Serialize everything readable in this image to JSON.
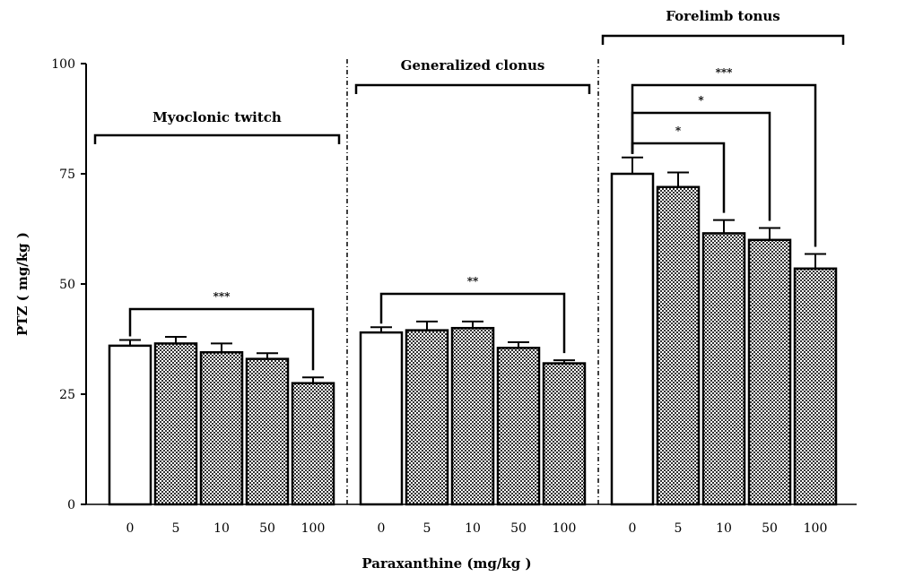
{
  "chart_data": {
    "type": "bar",
    "xlabel": "Paraxanthine (mg/kg )",
    "ylabel": "PTZ ( mg/kg )",
    "ylim": [
      0,
      100
    ],
    "yticks": [
      0,
      25,
      50,
      75,
      100
    ],
    "grid": false,
    "legend": "none",
    "colors": {
      "control": "#ffffff",
      "treated": "#9a9a9a",
      "stroke": "#000000"
    },
    "groups": [
      {
        "name": "Myoclonic twitch",
        "categories": [
          "0",
          "5",
          "10",
          "50",
          "100"
        ],
        "values": [
          36,
          36.5,
          34.5,
          33,
          27.5
        ],
        "errors": [
          1.3,
          1.5,
          2.0,
          1.3,
          1.3
        ],
        "significance": [
          {
            "from": 0,
            "to": 4,
            "label": "***"
          }
        ]
      },
      {
        "name": "Generalized clonus",
        "categories": [
          "0",
          "5",
          "10",
          "50",
          "100"
        ],
        "values": [
          39,
          39.5,
          40,
          35.5,
          32
        ],
        "errors": [
          1.2,
          2.0,
          1.5,
          1.3,
          0.7
        ],
        "significance": [
          {
            "from": 0,
            "to": 4,
            "label": "**"
          }
        ]
      },
      {
        "name": "Forelimb tonus",
        "categories": [
          "0",
          "5",
          "10",
          "50",
          "100"
        ],
        "values": [
          75,
          72,
          61.5,
          60,
          53.5
        ],
        "errors": [
          3.7,
          3.3,
          3.0,
          2.7,
          3.3
        ],
        "significance": [
          {
            "from": 0,
            "to": 2,
            "label": "*"
          },
          {
            "from": 0,
            "to": 3,
            "label": "*"
          },
          {
            "from": 0,
            "to": 4,
            "label": "***"
          }
        ]
      }
    ]
  }
}
